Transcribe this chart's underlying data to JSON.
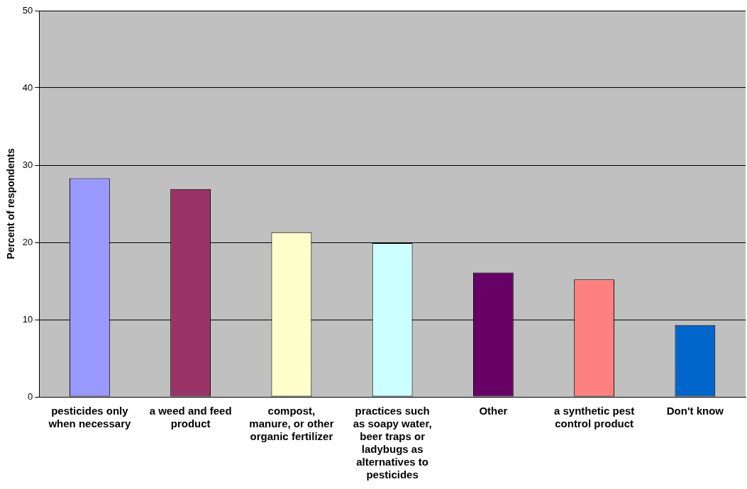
{
  "chart_data": {
    "type": "bar",
    "ylabel": "Percent of respondents",
    "categories": [
      "pesticides only when necessary",
      "a weed and feed product",
      "compost, manure, or other organic fertilizer",
      "practices such as soapy water, beer traps or ladybugs as alternatives to pesticides",
      "Other",
      "a synthetic pest control product",
      "Don't know"
    ],
    "values": [
      28.3,
      26.9,
      21.3,
      19.9,
      16.1,
      15.2,
      9.3
    ],
    "colors": [
      "#9999ff",
      "#993366",
      "#ffffcc",
      "#ccffff",
      "#660066",
      "#ff8080",
      "#0066cc"
    ],
    "ylim": [
      0,
      50
    ],
    "yticks": [
      0,
      10,
      20,
      30,
      40,
      50
    ],
    "grid": "y",
    "legend": false
  }
}
